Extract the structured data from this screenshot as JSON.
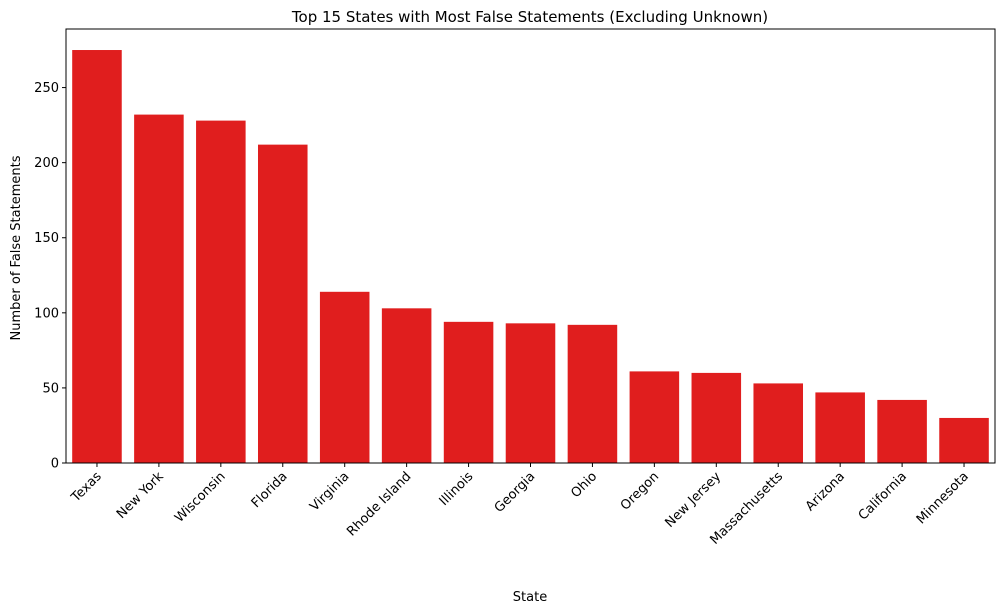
{
  "chart_data": {
    "type": "bar",
    "title": "Top 15 States with Most False Statements (Excluding Unknown)",
    "xlabel": "State",
    "ylabel": "Number of False Statements",
    "categories": [
      "Texas",
      "New York",
      "Wisconsin",
      "Florida",
      "Virginia",
      "Rhode Island",
      "Illinois",
      "Georgia",
      "Ohio",
      "Oregon",
      "New Jersey",
      "Massachusetts",
      "Arizona",
      "California",
      "Minnesota"
    ],
    "values": [
      275,
      232,
      228,
      212,
      114,
      103,
      94,
      93,
      92,
      61,
      60,
      53,
      47,
      42,
      30
    ],
    "ylim": [
      0,
      289
    ],
    "yticks": [
      0,
      50,
      100,
      150,
      200,
      250
    ],
    "bar_color": "#e01e1e",
    "grid": false,
    "legend": false
  }
}
